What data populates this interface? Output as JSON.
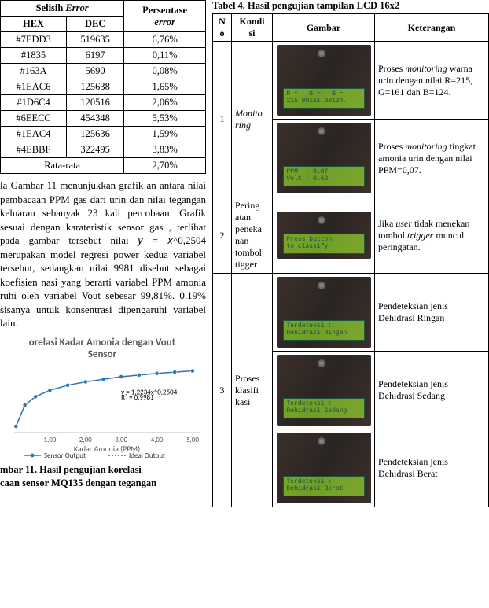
{
  "left_table": {
    "header": {
      "selisih_word": "Selisih",
      "selisih_italic": "Error",
      "persentase_word": "Persentase",
      "persentase_italic": "error",
      "hex": "HEX",
      "dec": "DEC"
    },
    "rows": [
      {
        "hex": "#7EDD3",
        "dec": "519635",
        "pct": "6,76%"
      },
      {
        "hex": "#1835",
        "dec": "6197",
        "pct": "0,11%"
      },
      {
        "hex": "#163A",
        "dec": "5690",
        "pct": "0,08%"
      },
      {
        "hex": "#1EAC6",
        "dec": "125638",
        "pct": "1,65%"
      },
      {
        "hex": "#1D6C4",
        "dec": "120516",
        "pct": "2,06%"
      },
      {
        "hex": "#6EECC",
        "dec": "454348",
        "pct": "5,53%"
      },
      {
        "hex": "#1EAC4",
        "dec": "125636",
        "pct": "1,59%"
      },
      {
        "hex": "#4EBBF",
        "dec": "322495",
        "pct": "3,83%"
      }
    ],
    "avg_label": "Rata-rata",
    "avg_value": "2,70%"
  },
  "paragraph": "la Gambar 11 menunjukkan grafik an antara nilai pembacaan PPM gas dari urin dan nilai tegangan keluaran sebanyak 23 kali percobaan. Grafik sesuai dengan karateristik sensor gas , terlihat pada gambar tersebut nilai 𝑦 = 𝑥^0,2504 merupakan model regresi power kedua variabel tersebut, sedangkan nilai 9981 disebut sebagai koefisien nasi yang berarti variabel PPM amonia ruhi oleh variabel Vout sebesar 99,81%. 0,19% sisanya untuk konsentrasi dipengaruhi variabel lain.",
  "chart": {
    "title_line1": "orelasi Kadar Amonia dengan Vout",
    "title_line2": "Sensor",
    "x_label_partial": "Kadar Amonia (PPM)",
    "x_ticks": [
      "1,00",
      "2,00",
      "3,00",
      "4,00",
      "5,00"
    ],
    "series_color": "#2e75b6",
    "eq_line1": "y = 1,2234x^0,2504",
    "eq_line2": "R² = 0,9981",
    "legend_sensor": "Sensor Output",
    "legend_ideal": "Ideal Output",
    "curve_points": [
      {
        "x": 0.05,
        "y": 0.55
      },
      {
        "x": 0.3,
        "y": 1.05
      },
      {
        "x": 0.6,
        "y": 1.25
      },
      {
        "x": 1.0,
        "y": 1.4
      },
      {
        "x": 1.5,
        "y": 1.52
      },
      {
        "x": 2.0,
        "y": 1.6
      },
      {
        "x": 2.5,
        "y": 1.66
      },
      {
        "x": 3.0,
        "y": 1.72
      },
      {
        "x": 3.5,
        "y": 1.76
      },
      {
        "x": 4.0,
        "y": 1.8
      },
      {
        "x": 4.5,
        "y": 1.83
      },
      {
        "x": 5.0,
        "y": 1.86
      }
    ],
    "x_min": 0,
    "x_max": 5.2,
    "y_min": 0.4,
    "y_max": 2.0
  },
  "chart_caption_line1": "mbar 11. Hasil pengujian korelasi",
  "chart_caption_line2": "caan sensor MQ135 dengan tegangan",
  "table4": {
    "title": "Tabel 4. Hasil pengujian tampilan LCD 16x2",
    "headers": {
      "no": "N\no",
      "kondisi": "Kondi\nsi",
      "gambar": "Gambar",
      "ket": "Keterangan"
    },
    "rows": [
      {
        "no": "1",
        "kondisi_html": "Monito\nring",
        "kondisi_italic": true,
        "gambar_count": 2,
        "lcd_texts": [
          "R =   G =   B =\n215.00161.00124.",
          "PPM  : 0.07\nVolt : 0.63"
        ],
        "ket_a": "Proses monitoring warna urin dengan nilai R=215, G=161 dan B=124.",
        "ket_a_italic_word": "monitoring",
        "ket_b": "Proses monitoring tingkat amonia urin dengan nilai PPM=0,07.",
        "ket_b_italic_word": "monitoring"
      },
      {
        "no": "2",
        "kondisi_html": "Pering\natan\npeneka\nnan\ntombol\ntigger",
        "kondisi_italic": false,
        "gambar_count": 1,
        "lcd_texts": [
          "Press button\nto classify"
        ],
        "ket_a": "Jika user tidak menekan tombol trigger muncul peringatan.",
        "ket_a_italic_words": [
          "user",
          "trigger"
        ]
      },
      {
        "no": "3",
        "kondisi_html": "Proses\nklasifi\nkasi",
        "kondisi_italic": false,
        "gambar_count": 3,
        "lcd_texts": [
          "Terdeteksi :\nDehidrasi Ringan",
          "Terdeteksi :\nDehidrasi Sedang",
          "Terdeteksi :\nDehidrasi Berat"
        ],
        "ket_a": "Pendeteksian jenis Dehidrasi Ringan",
        "ket_b": "Pendeteksian jenis Dehidrasi Sedang",
        "ket_c": "Pendeteksian jenis Dehidrasi Berat"
      }
    ]
  }
}
